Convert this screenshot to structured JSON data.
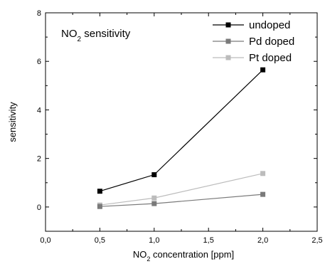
{
  "chart_data": {
    "type": "line",
    "annotation": {
      "prefix": "NO",
      "sub": "2",
      "suffix": " sensitivity"
    },
    "xlabel": {
      "prefix": "NO",
      "sub": "2",
      "suffix": " concentration [ppm]"
    },
    "ylabel": "sensitivity",
    "xlim": [
      0.0,
      2.5
    ],
    "ylim": [
      -1,
      8
    ],
    "xticks": [
      {
        "v": 0.0,
        "label": "0,0"
      },
      {
        "v": 0.5,
        "label": "0,5"
      },
      {
        "v": 1.0,
        "label": "1,0"
      },
      {
        "v": 1.5,
        "label": "1,5"
      },
      {
        "v": 2.0,
        "label": "2,0"
      },
      {
        "v": 2.5,
        "label": "2,5"
      }
    ],
    "yticks": [
      {
        "v": 0,
        "label": "0"
      },
      {
        "v": 2,
        "label": "2"
      },
      {
        "v": 4,
        "label": "4"
      },
      {
        "v": 6,
        "label": "6"
      },
      {
        "v": 8,
        "label": "8"
      }
    ],
    "x": [
      0.5,
      1.0,
      2.0
    ],
    "series": [
      {
        "name": "undoped",
        "color": "#000000",
        "values": [
          0.65,
          1.33,
          5.65
        ]
      },
      {
        "name": "Pd doped",
        "color": "#7a7a7a",
        "values": [
          0.02,
          0.14,
          0.52
        ]
      },
      {
        "name": "Pt doped",
        "color": "#bcbcbc",
        "values": [
          0.08,
          0.37,
          1.38
        ]
      }
    ],
    "legend_position": "top-right",
    "grid": false
  }
}
